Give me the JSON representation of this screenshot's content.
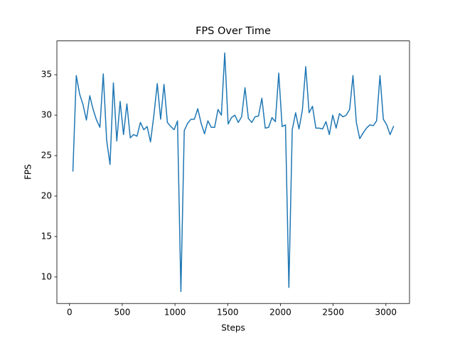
{
  "chart_data": {
    "type": "line",
    "title": "FPS Over Time",
    "xlabel": "Steps",
    "ylabel": "FPS",
    "x": [
      32,
      64,
      96,
      128,
      160,
      192,
      224,
      256,
      288,
      320,
      352,
      384,
      416,
      448,
      480,
      512,
      544,
      576,
      608,
      640,
      672,
      704,
      736,
      768,
      800,
      832,
      864,
      896,
      928,
      960,
      992,
      1024,
      1056,
      1088,
      1120,
      1152,
      1184,
      1216,
      1248,
      1280,
      1312,
      1344,
      1376,
      1408,
      1440,
      1472,
      1504,
      1536,
      1568,
      1600,
      1632,
      1664,
      1696,
      1728,
      1760,
      1792,
      1824,
      1856,
      1888,
      1920,
      1952,
      1984,
      2016,
      2048,
      2080,
      2112,
      2144,
      2176,
      2208,
      2240,
      2272,
      2304,
      2336,
      2368,
      2400,
      2432,
      2464,
      2496,
      2528,
      2560,
      2592,
      2624,
      2656,
      2688,
      2720,
      2752,
      2784,
      2816,
      2848,
      2880,
      2912,
      2944,
      2976,
      3008,
      3040,
      3072
    ],
    "values": [
      23.1,
      34.9,
      32.6,
      31.3,
      29.4,
      32.4,
      30.7,
      29.4,
      28.5,
      35.1,
      26.9,
      23.9,
      34.0,
      26.8,
      31.7,
      27.6,
      31.4,
      27.2,
      27.6,
      27.4,
      29.1,
      28.2,
      28.6,
      26.7,
      30.0,
      33.9,
      29.5,
      33.8,
      29.1,
      28.6,
      28.2,
      29.3,
      8.2,
      28.1,
      29.0,
      29.5,
      29.5,
      30.8,
      29.0,
      27.7,
      29.3,
      28.5,
      28.5,
      30.7,
      30.0,
      37.7,
      28.9,
      29.7,
      30.0,
      29.1,
      29.8,
      33.4,
      29.6,
      29.1,
      29.8,
      29.9,
      32.1,
      28.4,
      28.5,
      29.7,
      29.2,
      35.2,
      28.6,
      28.8,
      8.7,
      28.2,
      30.3,
      28.3,
      30.6,
      36.0,
      30.3,
      31.1,
      28.4,
      28.4,
      28.3,
      29.2,
      27.6,
      30.0,
      28.4,
      30.2,
      29.8,
      30.0,
      30.7,
      34.9,
      29.1,
      27.1,
      27.8,
      28.4,
      28.8,
      28.7,
      29.3,
      34.9,
      29.5,
      28.8,
      27.6,
      28.6
    ],
    "color": "#1f77b4",
    "xlim": [
      -120,
      3224
    ],
    "ylim": [
      6.72,
      39.18
    ],
    "xticks": [
      0,
      500,
      1000,
      1500,
      2000,
      2500,
      3000
    ],
    "yticks": [
      10,
      15,
      20,
      25,
      30,
      35
    ],
    "grid": false
  }
}
